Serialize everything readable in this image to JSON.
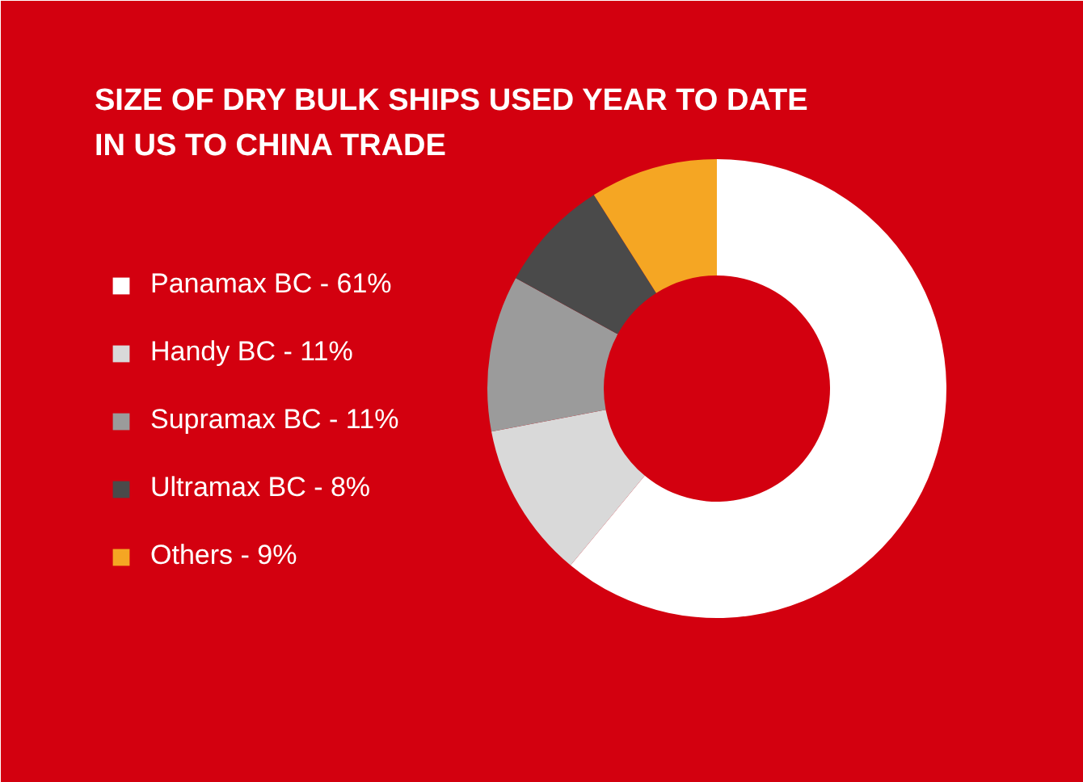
{
  "chart_data": {
    "type": "donut",
    "title": "SIZE OF DRY BULK SHIPS USED YEAR TO DATE IN US TO CHINA TRADE",
    "categories": [
      "Panamax BC - 61%",
      "Handy BC - 11%",
      "Supramax BC - 11%",
      "Ultramax BC - 8%",
      "Others - 9%"
    ],
    "values": [
      61,
      11,
      11,
      8,
      9
    ],
    "colors": [
      "#ffffff",
      "#d9d9d9",
      "#9b9b9b",
      "#4a4a4a",
      "#f5a623"
    ],
    "legend": "left"
  }
}
